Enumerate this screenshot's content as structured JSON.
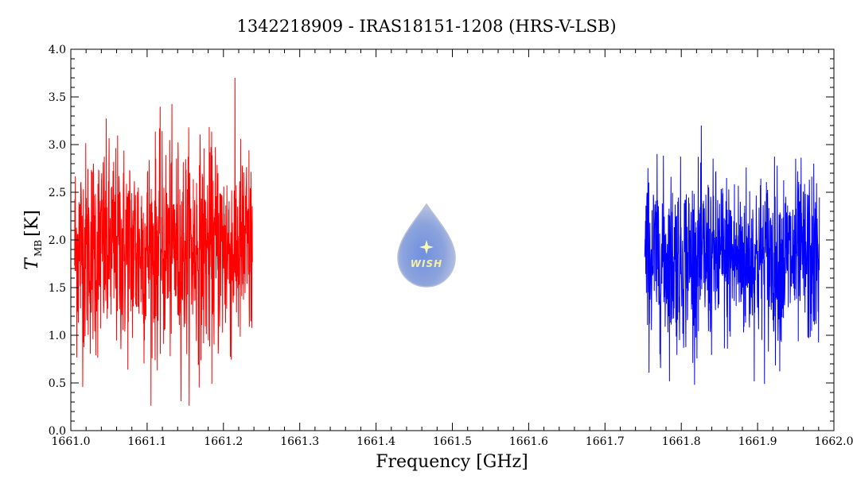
{
  "chart_data": {
    "type": "line",
    "title": "1342218909 - IRAS18151-1208 (HRS-V-LSB)",
    "xlabel": "Frequency [GHz]",
    "ylabel_main": "T",
    "ylabel_sub": "MB",
    "ylabel_unit": "[K]",
    "xlim": [
      1661.0,
      1662.0
    ],
    "ylim": [
      0.0,
      4.0
    ],
    "x_ticks": [
      "1661.0",
      "1661.1",
      "1661.2",
      "1661.3",
      "1661.4",
      "1661.5",
      "1661.6",
      "1661.7",
      "1661.8",
      "1661.9",
      "1662.0"
    ],
    "y_ticks": [
      "0.0",
      "0.5",
      "1.0",
      "1.5",
      "2.0",
      "2.5",
      "3.0",
      "3.5",
      "4.0"
    ],
    "series": [
      {
        "color": "#ff0000",
        "x_start": 1661.005,
        "x_end": 1661.238,
        "mean": 1.9,
        "sigma": 0.55,
        "min": 0.26,
        "max": 3.88
      },
      {
        "color": "#0000ff",
        "x_start": 1661.752,
        "x_end": 1661.981,
        "mean": 1.8,
        "sigma": 0.45,
        "min": 0.48,
        "max": 3.2
      }
    ],
    "grid": false
  },
  "logo": {
    "text": "WISH"
  }
}
